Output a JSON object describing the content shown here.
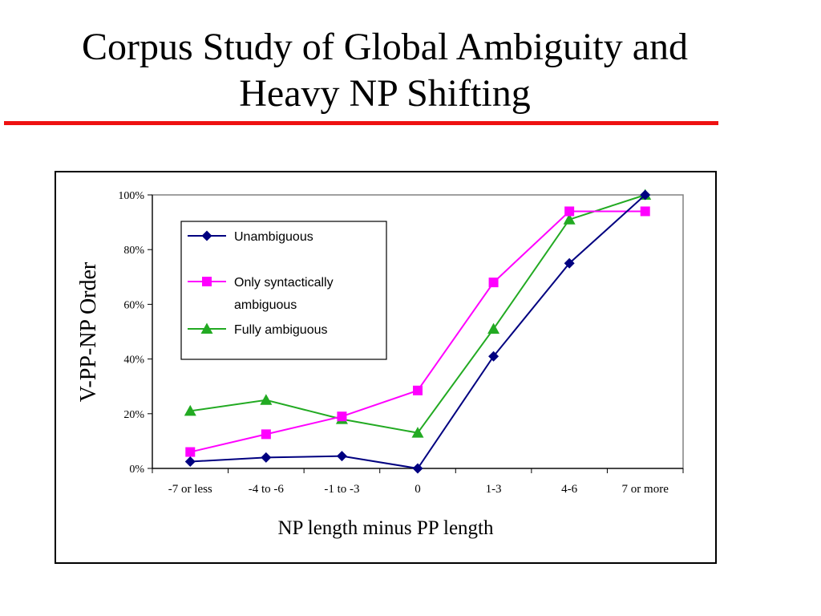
{
  "slide": {
    "title_line1": "Corpus Study of Global Ambiguity and",
    "title_line2": "Heavy NP Shifting",
    "accent_color": "#ee1111"
  },
  "chart_data": {
    "type": "line",
    "categories": [
      "-7 or less",
      "-4 to -6",
      "-1 to -3",
      "0",
      "1-3",
      "4-6",
      "7 or more"
    ],
    "xlabel": "NP length minus PP length",
    "ylabel": "V-PP-NP Order",
    "ylim": [
      0,
      100
    ],
    "yticks": [
      {
        "value": 0,
        "label": "0%"
      },
      {
        "value": 20,
        "label": "20%"
      },
      {
        "value": 40,
        "label": "40%"
      },
      {
        "value": 60,
        "label": "60%"
      },
      {
        "value": 80,
        "label": "80%"
      },
      {
        "value": 100,
        "label": "100%"
      }
    ],
    "grid": false,
    "legend_position": "top-left",
    "series": [
      {
        "name": "Unambiguous",
        "color": "#000080",
        "marker": "diamond",
        "values": [
          2.5,
          4,
          4.5,
          0,
          41,
          75,
          100
        ]
      },
      {
        "name": "Only syntactically ambiguous",
        "legend_lines": [
          "Only syntactically",
          "ambiguous"
        ],
        "color": "#ff00ff",
        "marker": "square",
        "values": [
          6,
          12.5,
          19,
          28.5,
          68,
          94,
          94
        ]
      },
      {
        "name": "Fully ambiguous",
        "color": "#22aa22",
        "marker": "triangle",
        "values": [
          21,
          25,
          18,
          13,
          51,
          91,
          100
        ]
      }
    ]
  }
}
